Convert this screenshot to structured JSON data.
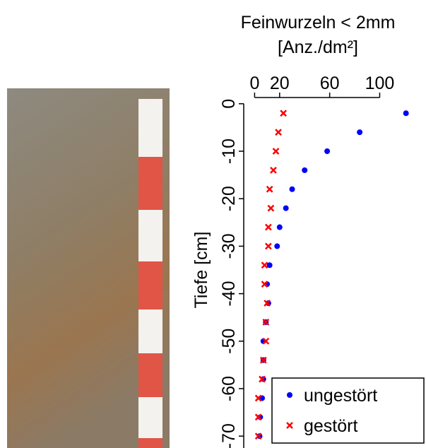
{
  "chart_data": {
    "type": "scatter",
    "title": [
      "Feinwurzeln < 2mm",
      "[Anz./dm²]"
    ],
    "ylabel": "Tiefe [cm]",
    "xlim": [
      -7,
      137
    ],
    "xticks": [
      0,
      20,
      60,
      100
    ],
    "ylim": [
      -72.5,
      2.5
    ],
    "yticks": [
      0,
      -10,
      -20,
      -30,
      -40,
      -50,
      -60,
      -70
    ],
    "legend": "lower right",
    "series": [
      {
        "name": "ungestört",
        "color": "#0000ff",
        "marker": "o",
        "x": [
          121,
          84,
          58,
          40,
          30,
          25,
          20,
          18,
          12,
          10,
          11,
          9,
          7,
          7,
          7,
          6,
          4.5,
          4
        ],
        "values": [
          -2,
          -6,
          -10,
          -14,
          -18,
          -22,
          -26,
          -30,
          -34,
          -38,
          -42,
          -46,
          -50,
          -54,
          -58,
          -62,
          -66,
          -70
        ]
      },
      {
        "name": "gestört",
        "color": "#ff0000",
        "marker": "x",
        "x": [
          23,
          19,
          17,
          15,
          12,
          13,
          11,
          11,
          8,
          8,
          10,
          9,
          9,
          7,
          6,
          3,
          3,
          3
        ],
        "values": [
          -2,
          -6,
          -10,
          -14,
          -18,
          -22,
          -26,
          -30,
          -34,
          -38,
          -42,
          -46,
          -50,
          -54,
          -58,
          -62,
          -66,
          -70
        ]
      }
    ]
  }
}
